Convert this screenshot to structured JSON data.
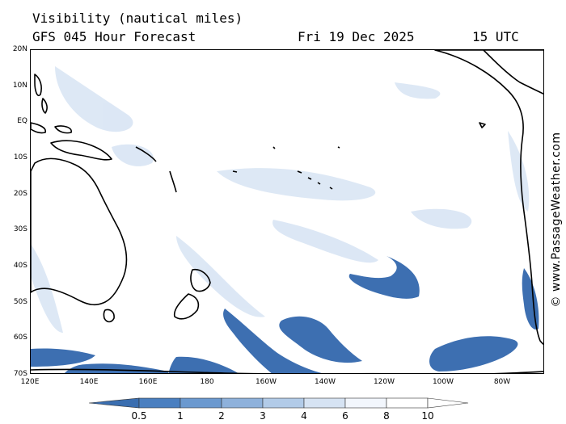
{
  "header": {
    "title": "Visibility (nautical miles)",
    "forecast": "GFS 045 Hour Forecast",
    "date": "Fri 19 Dec 2025",
    "time": "15 UTC"
  },
  "map": {
    "lat_labels": [
      "20N",
      "10N",
      "EQ",
      "10S",
      "20S",
      "30S",
      "40S",
      "50S",
      "60S",
      "70S"
    ],
    "lon_labels": [
      "120E",
      "140E",
      "160E",
      "180",
      "160W",
      "140W",
      "120W",
      "100W",
      "80W"
    ],
    "region": "South Pacific Ocean",
    "land_outline_color": "#000000",
    "ocean_color": "#ffffff"
  },
  "watermark": "© www.PassageWeather.com",
  "legend": {
    "labels": [
      "0.5",
      "1",
      "2",
      "3",
      "4",
      "6",
      "8",
      "10"
    ],
    "colors": [
      "#3a6eb0",
      "#4a7fc0",
      "#6b99cf",
      "#8eb1db",
      "#b2cbe8",
      "#d6e3f3",
      "#f2f6fc",
      "#ffffff"
    ]
  }
}
